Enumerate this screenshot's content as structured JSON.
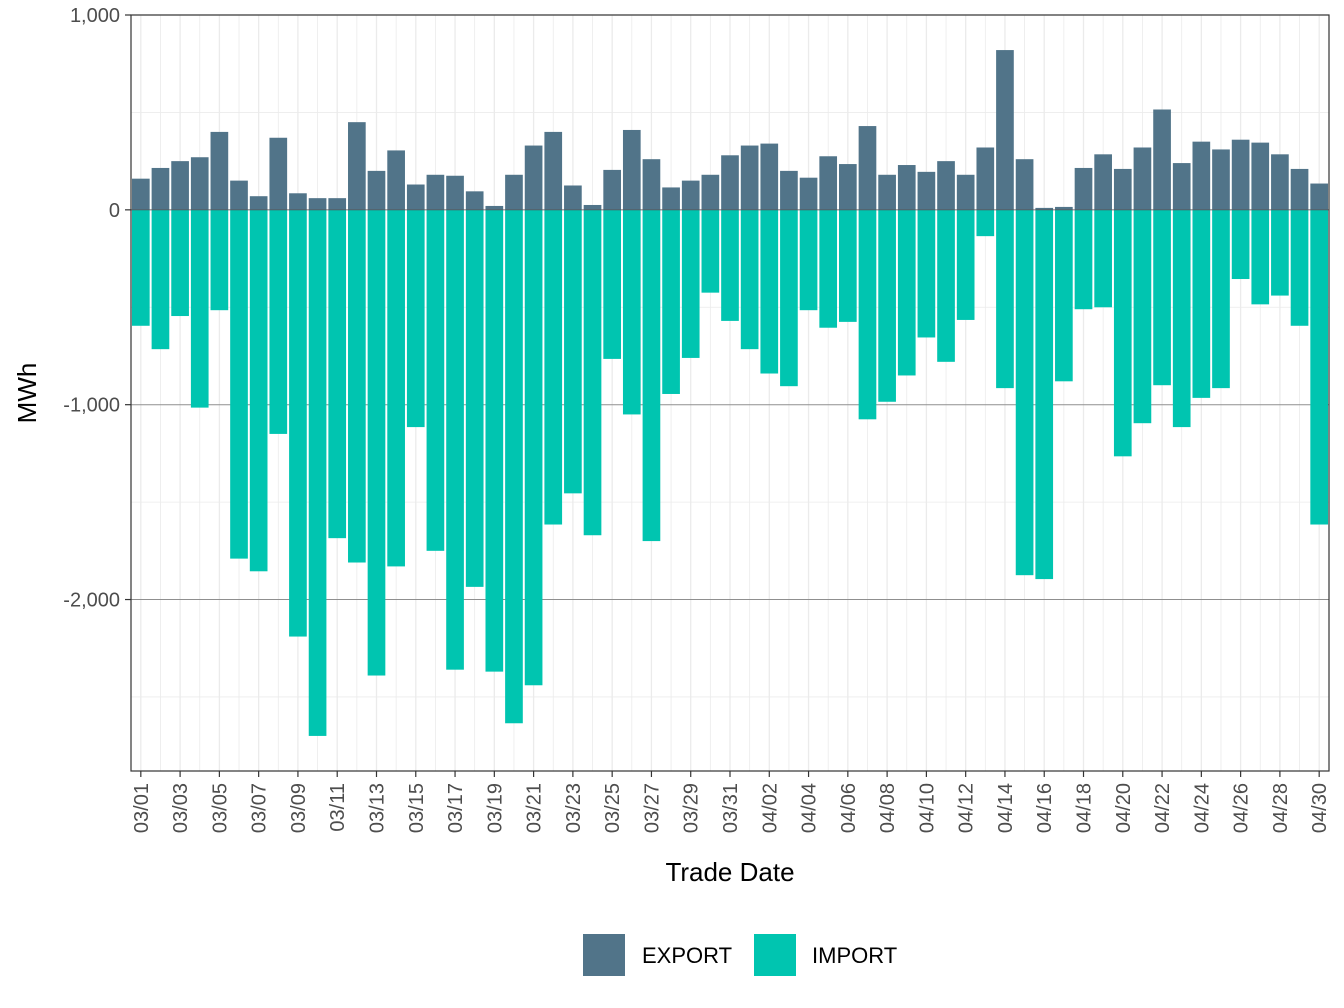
{
  "chart_data": {
    "type": "bar",
    "title": "",
    "xlabel": "Trade Date",
    "ylabel": "MWh",
    "ylim": [
      -2880,
      1000
    ],
    "yticks": [
      1000,
      0,
      -1000,
      -2000
    ],
    "ytick_labels": [
      "1,000",
      "0",
      "-1,000",
      "-2,000"
    ],
    "categories": [
      "03/01",
      "03/02",
      "03/03",
      "03/04",
      "03/05",
      "03/06",
      "03/07",
      "03/08",
      "03/09",
      "03/10",
      "03/11",
      "03/12",
      "03/13",
      "03/14",
      "03/15",
      "03/16",
      "03/17",
      "03/18",
      "03/19",
      "03/20",
      "03/21",
      "03/22",
      "03/23",
      "03/24",
      "03/25",
      "03/26",
      "03/27",
      "03/28",
      "03/29",
      "03/30",
      "03/31",
      "04/01",
      "04/02",
      "04/03",
      "04/04",
      "04/05",
      "04/06",
      "04/07",
      "04/08",
      "04/09",
      "04/10",
      "04/11",
      "04/12",
      "04/13",
      "04/14",
      "04/15",
      "04/16",
      "04/17",
      "04/18",
      "04/19",
      "04/20",
      "04/21",
      "04/22",
      "04/23",
      "04/24",
      "04/25",
      "04/26",
      "04/27",
      "04/28",
      "04/29",
      "04/30"
    ],
    "xtick_labels": [
      "03/01",
      "03/03",
      "03/05",
      "03/07",
      "03/09",
      "03/11",
      "03/13",
      "03/15",
      "03/17",
      "03/19",
      "03/21",
      "03/23",
      "03/25",
      "03/27",
      "03/29",
      "03/31",
      "04/02",
      "04/04",
      "04/06",
      "04/08",
      "04/10",
      "04/12",
      "04/14",
      "04/16",
      "04/18",
      "04/20",
      "04/22",
      "04/24",
      "04/26",
      "04/28",
      "04/30"
    ],
    "series": [
      {
        "name": "EXPORT",
        "color": "#517489",
        "values": [
          160,
          215,
          250,
          270,
          400,
          150,
          70,
          370,
          85,
          60,
          60,
          450,
          200,
          305,
          130,
          180,
          175,
          95,
          20,
          180,
          330,
          400,
          125,
          25,
          205,
          410,
          260,
          115,
          150,
          180,
          280,
          330,
          340,
          200,
          165,
          275,
          235,
          430,
          180,
          230,
          195,
          250,
          180,
          320,
          820,
          260,
          10,
          15,
          215,
          285,
          210,
          320,
          515,
          240,
          350,
          310,
          360,
          345,
          285,
          210,
          135
        ]
      },
      {
        "name": "IMPORT",
        "color": "#00c5b0",
        "values": [
          -595,
          -715,
          -545,
          -1015,
          -515,
          -1790,
          -1855,
          -1150,
          -2190,
          -2700,
          -1685,
          -1810,
          -2390,
          -1830,
          -1115,
          -1750,
          -2360,
          -1935,
          -2370,
          -2635,
          -2440,
          -1615,
          -1455,
          -1670,
          -765,
          -1050,
          -1700,
          -945,
          -760,
          -425,
          -570,
          -715,
          -840,
          -905,
          -515,
          -605,
          -575,
          -1075,
          -985,
          -850,
          -655,
          -780,
          -565,
          -135,
          -915,
          -1875,
          -1895,
          -880,
          -510,
          -500,
          -1265,
          -1095,
          -900,
          -1115,
          -965,
          -915,
          -355,
          -485,
          -440,
          -595,
          -1615
        ]
      }
    ],
    "legend": {
      "position": "bottom",
      "entries": [
        "EXPORT",
        "IMPORT"
      ]
    }
  }
}
